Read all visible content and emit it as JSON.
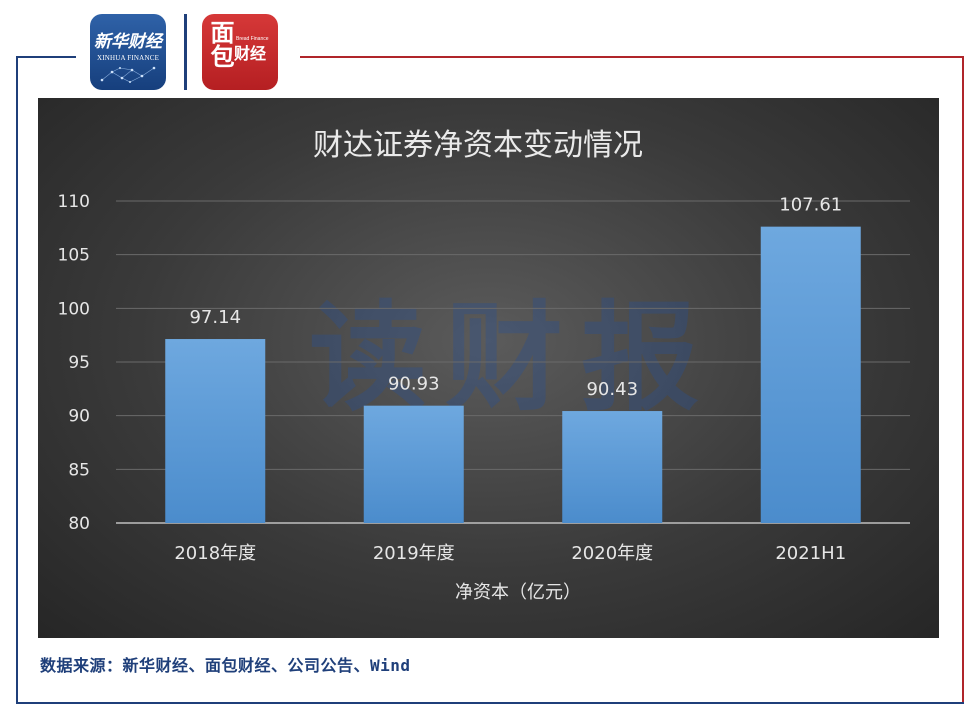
{
  "logos": {
    "xinhua_cn": "新华财经",
    "xinhua_en": "XINHUA FINANCE",
    "mianbao_big": "面包",
    "mianbao_small": "财经",
    "mianbao_tag": "Bread Finance"
  },
  "watermark": "读财报",
  "source": "数据来源：新华财经、面包财经、公司公告、Wind",
  "colors": {
    "bar": "#5b9bd5",
    "bar_top": "#6aa7df",
    "panel_bg": "#3a3a3a",
    "frame_blue": "#1f3f7a",
    "frame_red": "#b0252a",
    "text_light": "#e6e6e6"
  },
  "chart_data": {
    "type": "bar",
    "title": "财达证券净资本变动情况",
    "xlabel": "净资本（亿元）",
    "ylabel": "",
    "categories": [
      "2018年度",
      "2019年度",
      "2020年度",
      "2021H1"
    ],
    "values": [
      97.14,
      90.93,
      90.43,
      107.61
    ],
    "data_labels": [
      "97.14",
      "90.93",
      "90.43",
      "107.61"
    ],
    "ylim": [
      80,
      110
    ],
    "yticks": [
      80,
      85,
      90,
      95,
      100,
      105,
      110
    ],
    "grid": true,
    "legend": "none"
  }
}
